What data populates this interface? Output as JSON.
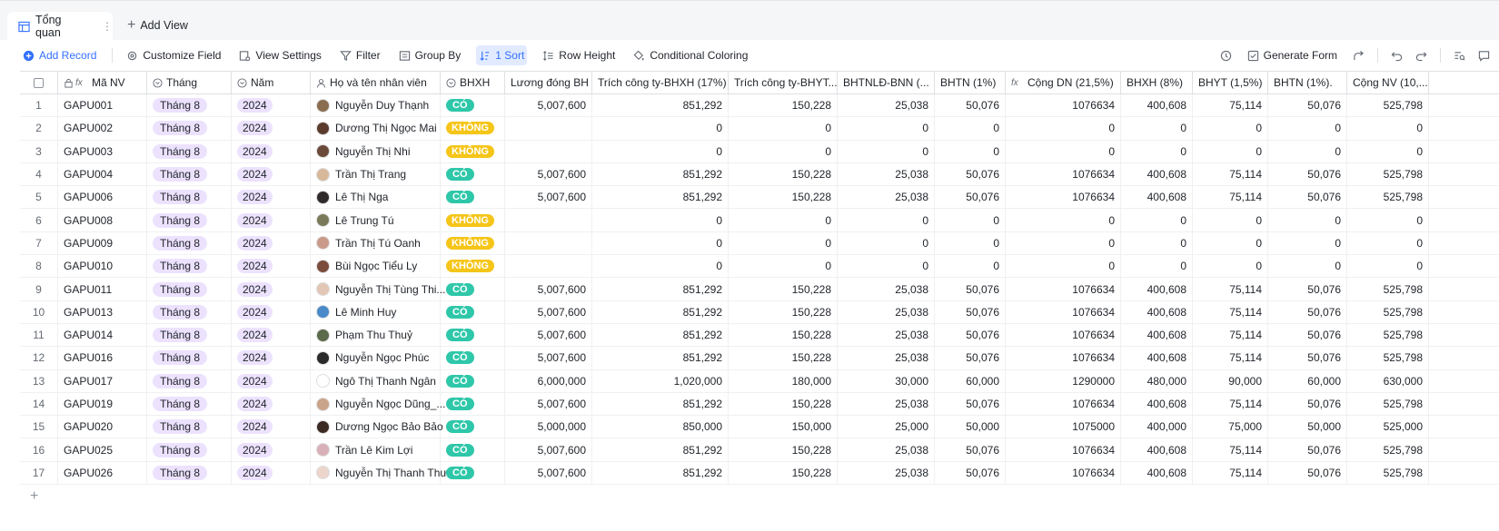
{
  "tabs": {
    "active_label": "Tổng quan",
    "add_view_label": "Add View"
  },
  "toolbar": {
    "add_record": "Add Record",
    "customize_field": "Customize Field",
    "view_settings": "View Settings",
    "filter": "Filter",
    "group_by": "Group By",
    "sort": "1 Sort",
    "row_height": "Row Height",
    "conditional_coloring": "Conditional Coloring",
    "generate_form": "Generate Form"
  },
  "columns": [
    {
      "key": "ma",
      "label": "Mã NV",
      "icon": "formula-lock-icon"
    },
    {
      "key": "thang",
      "label": "Tháng",
      "icon": "single-select-icon"
    },
    {
      "key": "nam",
      "label": "Năm",
      "icon": "single-select-icon"
    },
    {
      "key": "ten",
      "label": "Họ và tên nhân viên",
      "icon": "person-icon"
    },
    {
      "key": "bhxh",
      "label": "BHXH",
      "icon": "single-select-icon"
    },
    {
      "key": "luong",
      "label": "Lương đóng BH",
      "icon": ""
    },
    {
      "key": "c1",
      "label": "Trích công ty-BHXH (17%)",
      "icon": ""
    },
    {
      "key": "c2",
      "label": "Trích công ty-BHYT...",
      "icon": ""
    },
    {
      "key": "c3",
      "label": "BHTNLĐ-BNN (...",
      "icon": ""
    },
    {
      "key": "c4",
      "label": "BHTN (1%)",
      "icon": ""
    },
    {
      "key": "c5",
      "label": "Cộng DN (21,5%)",
      "icon": "formula-icon"
    },
    {
      "key": "c6",
      "label": "BHXH (8%)",
      "icon": ""
    },
    {
      "key": "c7",
      "label": "BHYT (1,5%)",
      "icon": ""
    },
    {
      "key": "c8",
      "label": "BHTN (1%).",
      "icon": ""
    },
    {
      "key": "c9",
      "label": "Cộng NV (10,...",
      "icon": ""
    }
  ],
  "rows": [
    {
      "idx": "1",
      "ma": "GAPU001",
      "thang": "Tháng 8",
      "nam": "2024",
      "ten": "Nguyễn Duy Thạnh",
      "bhxh": "CÓ",
      "luong": "5,007,600",
      "c1": "851,292",
      "c2": "150,228",
      "c3": "25,038",
      "c4": "50,076",
      "c5": "1076634",
      "c6": "400,608",
      "c7": "75,114",
      "c8": "50,076",
      "c9": "525,798",
      "av": "#8a6d4f"
    },
    {
      "idx": "2",
      "ma": "GAPU002",
      "thang": "Tháng 8",
      "nam": "2024",
      "ten": "Dương Thị Ngọc Mai",
      "bhxh": "KHÔNG",
      "luong": "",
      "c1": "0",
      "c2": "0",
      "c3": "0",
      "c4": "0",
      "c5": "0",
      "c6": "0",
      "c7": "0",
      "c8": "0",
      "c9": "0",
      "av": "#5a3b2e"
    },
    {
      "idx": "3",
      "ma": "GAPU003",
      "thang": "Tháng 8",
      "nam": "2024",
      "ten": "Nguyễn Thị  Nhi",
      "bhxh": "KHÔNG",
      "luong": "",
      "c1": "0",
      "c2": "0",
      "c3": "0",
      "c4": "0",
      "c5": "0",
      "c6": "0",
      "c7": "0",
      "c8": "0",
      "c9": "0",
      "av": "#6b4a3a"
    },
    {
      "idx": "4",
      "ma": "GAPU004",
      "thang": "Tháng 8",
      "nam": "2024",
      "ten": "Trần Thị Trang",
      "bhxh": "CÓ",
      "luong": "5,007,600",
      "c1": "851,292",
      "c2": "150,228",
      "c3": "25,038",
      "c4": "50,076",
      "c5": "1076634",
      "c6": "400,608",
      "c7": "75,114",
      "c8": "50,076",
      "c9": "525,798",
      "av": "#d8b89a"
    },
    {
      "idx": "5",
      "ma": "GAPU006",
      "thang": "Tháng 8",
      "nam": "2024",
      "ten": "Lê Thị Nga",
      "bhxh": "CÓ",
      "luong": "5,007,600",
      "c1": "851,292",
      "c2": "150,228",
      "c3": "25,038",
      "c4": "50,076",
      "c5": "1076634",
      "c6": "400,608",
      "c7": "75,114",
      "c8": "50,076",
      "c9": "525,798",
      "av": "#2e2a2a"
    },
    {
      "idx": "6",
      "ma": "GAPU008",
      "thang": "Tháng 8",
      "nam": "2024",
      "ten": "Lê Trung Tú",
      "bhxh": "KHÔNG",
      "luong": "",
      "c1": "0",
      "c2": "0",
      "c3": "0",
      "c4": "0",
      "c5": "0",
      "c6": "0",
      "c7": "0",
      "c8": "0",
      "c9": "0",
      "av": "#7a7a5a"
    },
    {
      "idx": "7",
      "ma": "GAPU009",
      "thang": "Tháng 8",
      "nam": "2024",
      "ten": "Trần Thị Tú Oanh",
      "bhxh": "KHÔNG",
      "luong": "",
      "c1": "0",
      "c2": "0",
      "c3": "0",
      "c4": "0",
      "c5": "0",
      "c6": "0",
      "c7": "0",
      "c8": "0",
      "c9": "0",
      "av": "#c99a8a"
    },
    {
      "idx": "8",
      "ma": "GAPU010",
      "thang": "Tháng 8",
      "nam": "2024",
      "ten": "Bùi Ngọc Tiểu Ly",
      "bhxh": "KHÔNG",
      "luong": "",
      "c1": "0",
      "c2": "0",
      "c3": "0",
      "c4": "0",
      "c5": "0",
      "c6": "0",
      "c7": "0",
      "c8": "0",
      "c9": "0",
      "av": "#7b4b3b"
    },
    {
      "idx": "9",
      "ma": "GAPU011",
      "thang": "Tháng 8",
      "nam": "2024",
      "ten": "Nguyễn Thị Tùng Thi...",
      "bhxh": "CÓ",
      "luong": "5,007,600",
      "c1": "851,292",
      "c2": "150,228",
      "c3": "25,038",
      "c4": "50,076",
      "c5": "1076634",
      "c6": "400,608",
      "c7": "75,114",
      "c8": "50,076",
      "c9": "525,798",
      "av": "#e3c7b6"
    },
    {
      "idx": "10",
      "ma": "GAPU013",
      "thang": "Tháng 8",
      "nam": "2024",
      "ten": "Lê Minh Huy",
      "bhxh": "CÓ",
      "luong": "5,007,600",
      "c1": "851,292",
      "c2": "150,228",
      "c3": "25,038",
      "c4": "50,076",
      "c5": "1076634",
      "c6": "400,608",
      "c7": "75,114",
      "c8": "50,076",
      "c9": "525,798",
      "av": "#4a8ac9"
    },
    {
      "idx": "11",
      "ma": "GAPU014",
      "thang": "Tháng 8",
      "nam": "2024",
      "ten": "Phạm Thu Thuỷ",
      "bhxh": "CÓ",
      "luong": "5,007,600",
      "c1": "851,292",
      "c2": "150,228",
      "c3": "25,038",
      "c4": "50,076",
      "c5": "1076634",
      "c6": "400,608",
      "c7": "75,114",
      "c8": "50,076",
      "c9": "525,798",
      "av": "#5a6a4a"
    },
    {
      "idx": "12",
      "ma": "GAPU016",
      "thang": "Tháng 8",
      "nam": "2024",
      "ten": "Nguyễn Ngọc Phúc",
      "bhxh": "CÓ",
      "luong": "5,007,600",
      "c1": "851,292",
      "c2": "150,228",
      "c3": "25,038",
      "c4": "50,076",
      "c5": "1076634",
      "c6": "400,608",
      "c7": "75,114",
      "c8": "50,076",
      "c9": "525,798",
      "av": "#2a2a2a"
    },
    {
      "idx": "13",
      "ma": "GAPU017",
      "thang": "Tháng 8",
      "nam": "2024",
      "ten": "Ngô Thị Thanh Ngân",
      "bhxh": "CÓ",
      "luong": "6,000,000",
      "c1": "1,020,000",
      "c2": "180,000",
      "c3": "30,000",
      "c4": "60,000",
      "c5": "1290000",
      "c6": "480,000",
      "c7": "90,000",
      "c8": "60,000",
      "c9": "630,000",
      "av": "#ffffff"
    },
    {
      "idx": "14",
      "ma": "GAPU019",
      "thang": "Tháng 8",
      "nam": "2024",
      "ten": "Nguyễn Ngọc Dũng_...",
      "bhxh": "CÓ",
      "luong": "5,007,600",
      "c1": "851,292",
      "c2": "150,228",
      "c3": "25,038",
      "c4": "50,076",
      "c5": "1076634",
      "c6": "400,608",
      "c7": "75,114",
      "c8": "50,076",
      "c9": "525,798",
      "av": "#c9a48a"
    },
    {
      "idx": "15",
      "ma": "GAPU020",
      "thang": "Tháng 8",
      "nam": "2024",
      "ten": "Dương Ngọc Bảo Bảo",
      "bhxh": "CÓ",
      "luong": "5,000,000",
      "c1": "850,000",
      "c2": "150,000",
      "c3": "25,000",
      "c4": "50,000",
      "c5": "1075000",
      "c6": "400,000",
      "c7": "75,000",
      "c8": "50,000",
      "c9": "525,000",
      "av": "#3a2a22"
    },
    {
      "idx": "16",
      "ma": "GAPU025",
      "thang": "Tháng 8",
      "nam": "2024",
      "ten": "Trần Lê Kim Lợi",
      "bhxh": "CÓ",
      "luong": "5,007,600",
      "c1": "851,292",
      "c2": "150,228",
      "c3": "25,038",
      "c4": "50,076",
      "c5": "1076634",
      "c6": "400,608",
      "c7": "75,114",
      "c8": "50,076",
      "c9": "525,798",
      "av": "#d9b0b8"
    },
    {
      "idx": "17",
      "ma": "GAPU026",
      "thang": "Tháng 8",
      "nam": "2024",
      "ten": "Nguyễn Thị Thanh Thư",
      "bhxh": "CÓ",
      "luong": "5,007,600",
      "c1": "851,292",
      "c2": "150,228",
      "c3": "25,038",
      "c4": "50,076",
      "c5": "1076634",
      "c6": "400,608",
      "c7": "75,114",
      "c8": "50,076",
      "c9": "525,798",
      "av": "#ecd6cc"
    }
  ]
}
